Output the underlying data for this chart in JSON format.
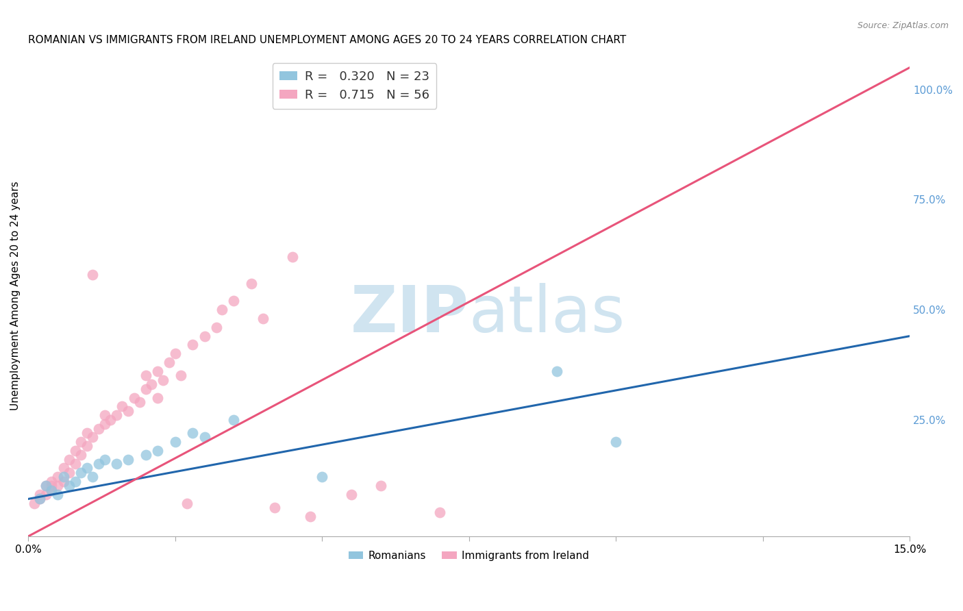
{
  "title": "ROMANIAN VS IMMIGRANTS FROM IRELAND UNEMPLOYMENT AMONG AGES 20 TO 24 YEARS CORRELATION CHART",
  "source": "Source: ZipAtlas.com",
  "ylabel": "Unemployment Among Ages 20 to 24 years",
  "xlim": [
    0.0,
    0.15
  ],
  "ylim": [
    -0.015,
    1.08
  ],
  "xticks": [
    0.0,
    0.025,
    0.05,
    0.075,
    0.1,
    0.125,
    0.15
  ],
  "xticklabels": [
    "0.0%",
    "",
    "",
    "",
    "",
    "",
    "15.0%"
  ],
  "yticks_right": [
    0.25,
    0.5,
    0.75,
    1.0
  ],
  "ytick_right_labels": [
    "25.0%",
    "50.0%",
    "75.0%",
    "100.0%"
  ],
  "legend_r1": "R =  0.320",
  "legend_n1": "N = 23",
  "legend_r2": "R =  0.715",
  "legend_n2": "N = 56",
  "color_romanian": "#92c5de",
  "color_ireland": "#f4a6c0",
  "trendline_romanian_color": "#2166ac",
  "trendline_ireland_color": "#e8547a",
  "watermark_color": "#d0e4f0",
  "background_color": "#ffffff",
  "grid_color": "#dddddd",
  "romanians_x": [
    0.002,
    0.003,
    0.004,
    0.005,
    0.006,
    0.007,
    0.008,
    0.009,
    0.01,
    0.011,
    0.012,
    0.013,
    0.015,
    0.017,
    0.02,
    0.022,
    0.025,
    0.028,
    0.03,
    0.035,
    0.05,
    0.09,
    0.1
  ],
  "romanians_y": [
    0.07,
    0.1,
    0.09,
    0.08,
    0.12,
    0.1,
    0.11,
    0.13,
    0.14,
    0.12,
    0.15,
    0.16,
    0.15,
    0.16,
    0.17,
    0.18,
    0.2,
    0.22,
    0.21,
    0.25,
    0.12,
    0.36,
    0.2
  ],
  "ireland_x": [
    0.001,
    0.002,
    0.002,
    0.003,
    0.003,
    0.004,
    0.004,
    0.004,
    0.005,
    0.005,
    0.006,
    0.006,
    0.007,
    0.007,
    0.008,
    0.008,
    0.009,
    0.009,
    0.01,
    0.01,
    0.011,
    0.011,
    0.012,
    0.013,
    0.013,
    0.014,
    0.015,
    0.016,
    0.017,
    0.018,
    0.019,
    0.02,
    0.02,
    0.021,
    0.022,
    0.022,
    0.023,
    0.024,
    0.025,
    0.026,
    0.027,
    0.028,
    0.03,
    0.032,
    0.033,
    0.035,
    0.038,
    0.04,
    0.042,
    0.045,
    0.048,
    0.05,
    0.055,
    0.06,
    0.065,
    0.07
  ],
  "ireland_y": [
    0.06,
    0.07,
    0.08,
    0.08,
    0.1,
    0.09,
    0.1,
    0.11,
    0.1,
    0.12,
    0.11,
    0.14,
    0.13,
    0.16,
    0.15,
    0.18,
    0.17,
    0.2,
    0.19,
    0.22,
    0.21,
    0.58,
    0.23,
    0.24,
    0.26,
    0.25,
    0.26,
    0.28,
    0.27,
    0.3,
    0.29,
    0.32,
    0.35,
    0.33,
    0.3,
    0.36,
    0.34,
    0.38,
    0.4,
    0.35,
    0.06,
    0.42,
    0.44,
    0.46,
    0.5,
    0.52,
    0.56,
    0.48,
    0.05,
    0.62,
    0.03,
    1.0,
    0.08,
    0.1,
    1.0,
    0.04
  ],
  "trendline_ireland_x0": 0.0,
  "trendline_ireland_y0": -0.015,
  "trendline_ireland_x1": 0.15,
  "trendline_ireland_y1": 1.05,
  "trendline_romanian_x0": 0.0,
  "trendline_romanian_y0": 0.07,
  "trendline_romanian_x1": 0.15,
  "trendline_romanian_y1": 0.44
}
